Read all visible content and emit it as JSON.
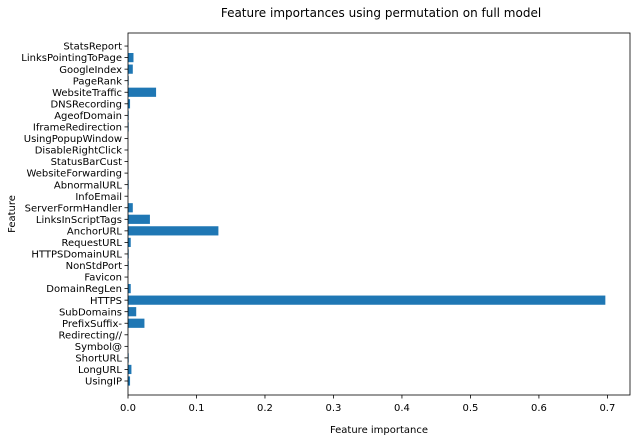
{
  "chart_data": {
    "type": "bar",
    "orientation": "horizontal",
    "title": "Feature importances using permutation on full model",
    "xlabel": "Feature importance",
    "ylabel": "Feature",
    "xlim": [
      0,
      0.733
    ],
    "xticks": [
      0.0,
      0.1,
      0.2,
      0.3,
      0.4,
      0.5,
      0.6,
      0.7
    ],
    "xtick_labels": [
      "0.0",
      "0.1",
      "0.2",
      "0.3",
      "0.4",
      "0.5",
      "0.6",
      "0.7"
    ],
    "grid": false,
    "bar_color": "#1f77b4",
    "categories": [
      "UsingIP",
      "LongURL",
      "ShortURL",
      "Symbol@",
      "Redirecting//",
      "PrefixSuffix-",
      "SubDomains",
      "HTTPS",
      "DomainRegLen",
      "Favicon",
      "NonStdPort",
      "HTTPSDomainURL",
      "RequestURL",
      "AnchorURL",
      "LinksInScriptTags",
      "ServerFormHandler",
      "InfoEmail",
      "AbnormalURL",
      "WebsiteForwarding",
      "StatusBarCust",
      "DisableRightClick",
      "UsingPopupWindow",
      "IframeRedirection",
      "AgeofDomain",
      "DNSRecording",
      "WebsiteTraffic",
      "PageRank",
      "GoogleIndex",
      "LinksPointingToPage",
      "StatsReport"
    ],
    "values": [
      0.003,
      0.005,
      0.001,
      0.0,
      0.0,
      0.024,
      0.012,
      0.697,
      0.004,
      0.0,
      0.001,
      0.001,
      0.004,
      0.132,
      0.032,
      0.007,
      0.0,
      0.001,
      0.0,
      0.0,
      0.0,
      0.0,
      0.001,
      0.001,
      0.003,
      0.041,
      0.001,
      0.007,
      0.008,
      0.0
    ]
  }
}
